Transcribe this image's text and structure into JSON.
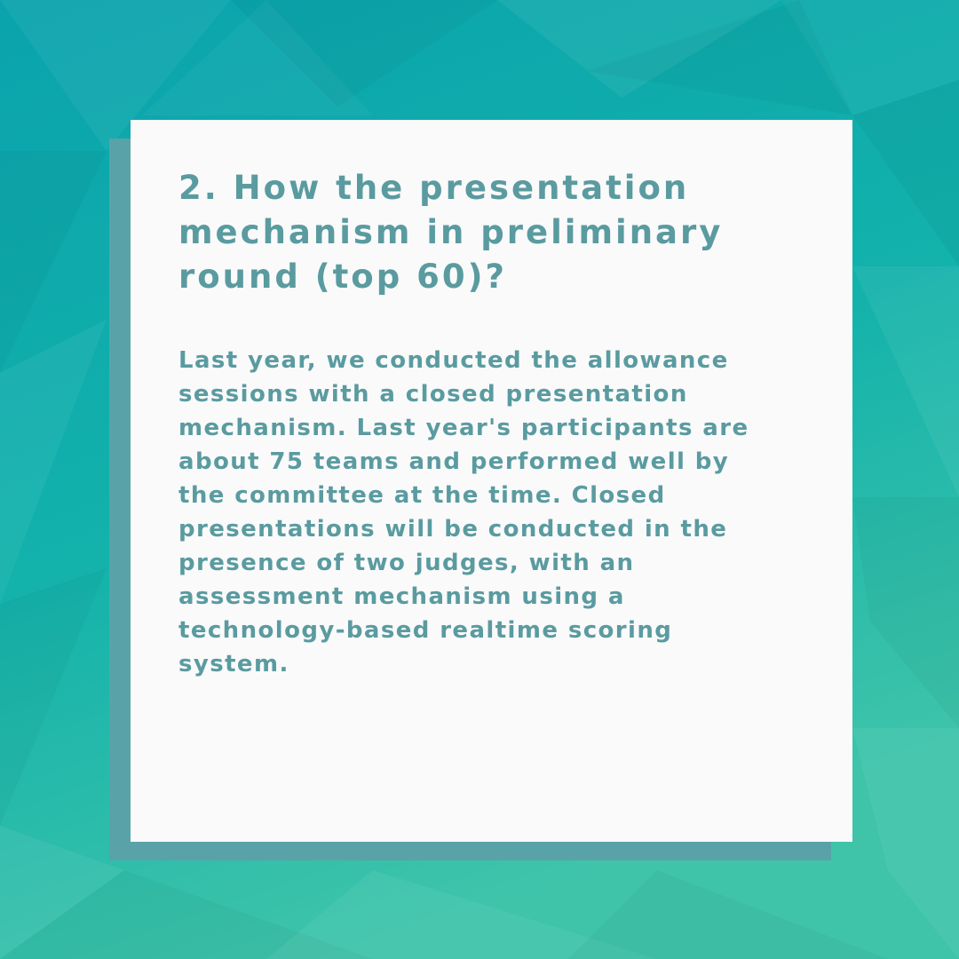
{
  "colors": {
    "background_top": "#0ba3ad",
    "background_bottom": "#3cc3a9",
    "card": "#fafafa",
    "card_shadow": "#59a3a8",
    "text": "#5a9ba0"
  },
  "card": {
    "title_lines": [
      "2. How the presentation",
      "mechanism in preliminary",
      "round (top 60)?"
    ],
    "body_lines": [
      "Last year, we conducted the allowance",
      "sessions with a closed presentation",
      "mechanism. Last year's participants are",
      "about 75 teams and performed well by",
      "the committee at the time. Closed",
      "presentations will be conducted in the",
      "presence of two judges, with an",
      "assessment mechanism using a",
      "technology-based realtime scoring",
      "system."
    ]
  }
}
